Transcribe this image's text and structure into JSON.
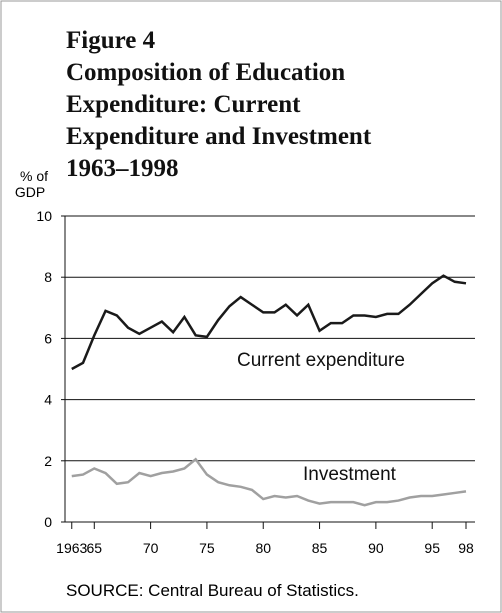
{
  "chart_data": {
    "type": "line",
    "figure_label": "Figure 4",
    "title": [
      "Composition of Education",
      "Expenditure: Current",
      "Expenditure and Investment",
      "1963–1998"
    ],
    "ylabel": [
      "% of",
      "GDP"
    ],
    "x": [
      1963,
      1964,
      1965,
      1966,
      1967,
      1968,
      1969,
      1970,
      1971,
      1972,
      1973,
      1974,
      1975,
      1976,
      1977,
      1978,
      1979,
      1980,
      1981,
      1982,
      1983,
      1984,
      1985,
      1986,
      1987,
      1988,
      1989,
      1990,
      1991,
      1992,
      1993,
      1994,
      1995,
      1996,
      1997,
      1998
    ],
    "series": [
      {
        "name": "Current expenditure",
        "color": "#1a1a1a",
        "values": [
          5.0,
          5.2,
          6.1,
          6.9,
          6.75,
          6.35,
          6.15,
          6.35,
          6.55,
          6.2,
          6.7,
          6.1,
          6.05,
          6.6,
          7.05,
          7.35,
          7.1,
          6.85,
          6.85,
          7.1,
          6.75,
          7.1,
          6.25,
          6.5,
          6.5,
          6.75,
          6.75,
          6.7,
          6.8,
          6.8,
          7.1,
          7.45,
          7.8,
          8.05,
          7.85,
          7.8
        ]
      },
      {
        "name": "Investment",
        "color": "#a0a0a0",
        "values": [
          1.5,
          1.55,
          1.75,
          1.6,
          1.25,
          1.3,
          1.6,
          1.5,
          1.6,
          1.65,
          1.75,
          2.05,
          1.55,
          1.3,
          1.2,
          1.15,
          1.05,
          0.75,
          0.85,
          0.8,
          0.85,
          0.7,
          0.6,
          0.65,
          0.65,
          0.65,
          0.55,
          0.65,
          0.65,
          0.7,
          0.8,
          0.85,
          0.85,
          0.9,
          0.95,
          1.0
        ]
      }
    ],
    "xlim": [
      1962.4,
      1998.8
    ],
    "xticks": [
      1963,
      {
        "value": 1965,
        "label": "65"
      },
      {
        "value": 1970,
        "label": "70"
      },
      {
        "value": 1975,
        "label": "75"
      },
      {
        "value": 1980,
        "label": "80"
      },
      {
        "value": 1985,
        "label": "85"
      },
      {
        "value": 1990,
        "label": "90"
      },
      {
        "value": 1995,
        "label": "95"
      },
      {
        "value": 1998,
        "label": "98"
      }
    ],
    "ylim": [
      0,
      10
    ],
    "yticks": [
      0,
      2,
      4,
      6,
      8,
      10
    ],
    "grid": true,
    "source": "SOURCE: Central Bureau of Statistics."
  }
}
